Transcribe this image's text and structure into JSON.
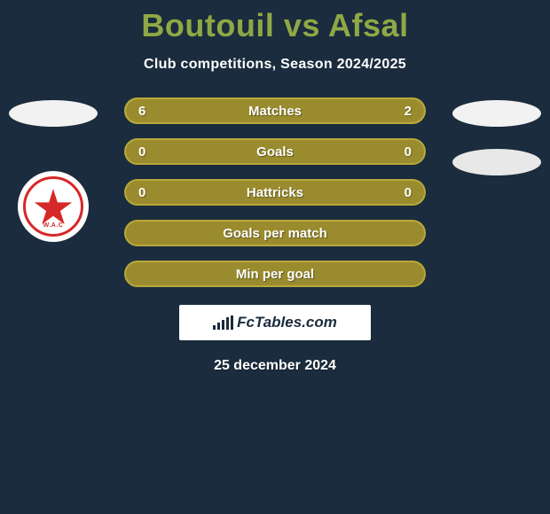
{
  "header": {
    "title": "Boutouil vs Afsal",
    "subtitle": "Club competitions, Season 2024/2025",
    "title_color": "#8fa845",
    "subtitle_color": "#ffffff"
  },
  "club_logo": {
    "name": "Wydad AC",
    "abbreviation": "W.A.C",
    "primary_color": "#d62828"
  },
  "bars": [
    {
      "label": "Matches",
      "left_value": "6",
      "right_value": "2",
      "left_pct": 75,
      "right_pct": 25,
      "fill_color": "#9a8c2e",
      "border_color": "#b8a83a",
      "track_color": "#c9b960"
    },
    {
      "label": "Goals",
      "left_value": "0",
      "right_value": "0",
      "left_pct": 0,
      "right_pct": 0,
      "fill_color": "#9a8c2e",
      "border_color": "#b8a83a",
      "track_color": "#9a8c2e"
    },
    {
      "label": "Hattricks",
      "left_value": "0",
      "right_value": "0",
      "left_pct": 0,
      "right_pct": 0,
      "fill_color": "#9a8c2e",
      "border_color": "#b8a83a",
      "track_color": "#9a8c2e"
    },
    {
      "label": "Goals per match",
      "left_value": "",
      "right_value": "",
      "left_pct": 0,
      "right_pct": 0,
      "fill_color": "#9a8c2e",
      "border_color": "#b8a83a",
      "track_color": "#9a8c2e"
    },
    {
      "label": "Min per goal",
      "left_value": "",
      "right_value": "",
      "left_pct": 0,
      "right_pct": 0,
      "fill_color": "#9a8c2e",
      "border_color": "#b8a83a",
      "track_color": "#9a8c2e"
    }
  ],
  "watermark": {
    "text": "FcTables.com",
    "icon_bars": [
      5,
      8,
      11,
      14,
      16
    ]
  },
  "footer": {
    "date": "25 december 2024"
  },
  "styling": {
    "background_color": "#1a2c3d",
    "placeholder_badge_color": "#f2f2f2"
  }
}
